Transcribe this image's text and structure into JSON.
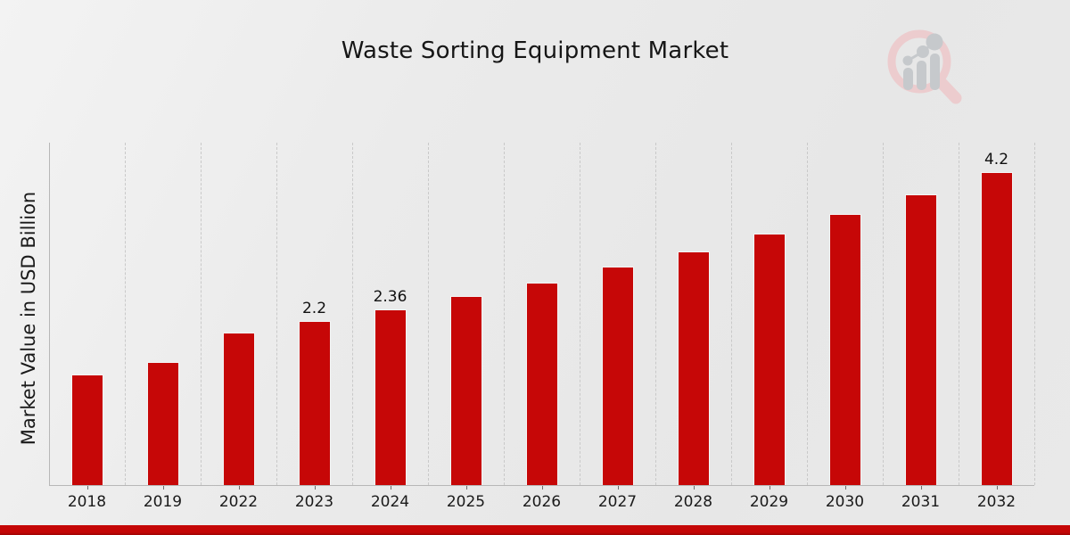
{
  "header": {
    "title": "Waste Sorting Equipment Market"
  },
  "chart_data": {
    "type": "bar",
    "title": "Waste Sorting Equipment Market",
    "xlabel": "",
    "ylabel": "Market Value in USD Billion",
    "categories": [
      "2018",
      "2019",
      "2022",
      "2023",
      "2024",
      "2025",
      "2026",
      "2027",
      "2028",
      "2029",
      "2030",
      "2031",
      "2032"
    ],
    "values": [
      1.49,
      1.65,
      2.05,
      2.2,
      2.36,
      2.54,
      2.72,
      2.93,
      3.14,
      3.38,
      3.64,
      3.91,
      4.2
    ],
    "data_labels": [
      "",
      "",
      "",
      "2.2",
      "2.36",
      "",
      "",
      "",
      "",
      "",
      "",
      "",
      "4.2"
    ],
    "ylim": [
      0,
      4.6
    ],
    "grid": "vertical-dashed",
    "legend": "none",
    "bar_color": "#c60707",
    "unit": "USD Billion"
  },
  "footer": {
    "banner_color": "#c00606"
  },
  "logo": {
    "name": "magnifier-bar-chart-watermark",
    "ring_color": "#ecccce",
    "glyph_color": "#c6c9cc"
  }
}
